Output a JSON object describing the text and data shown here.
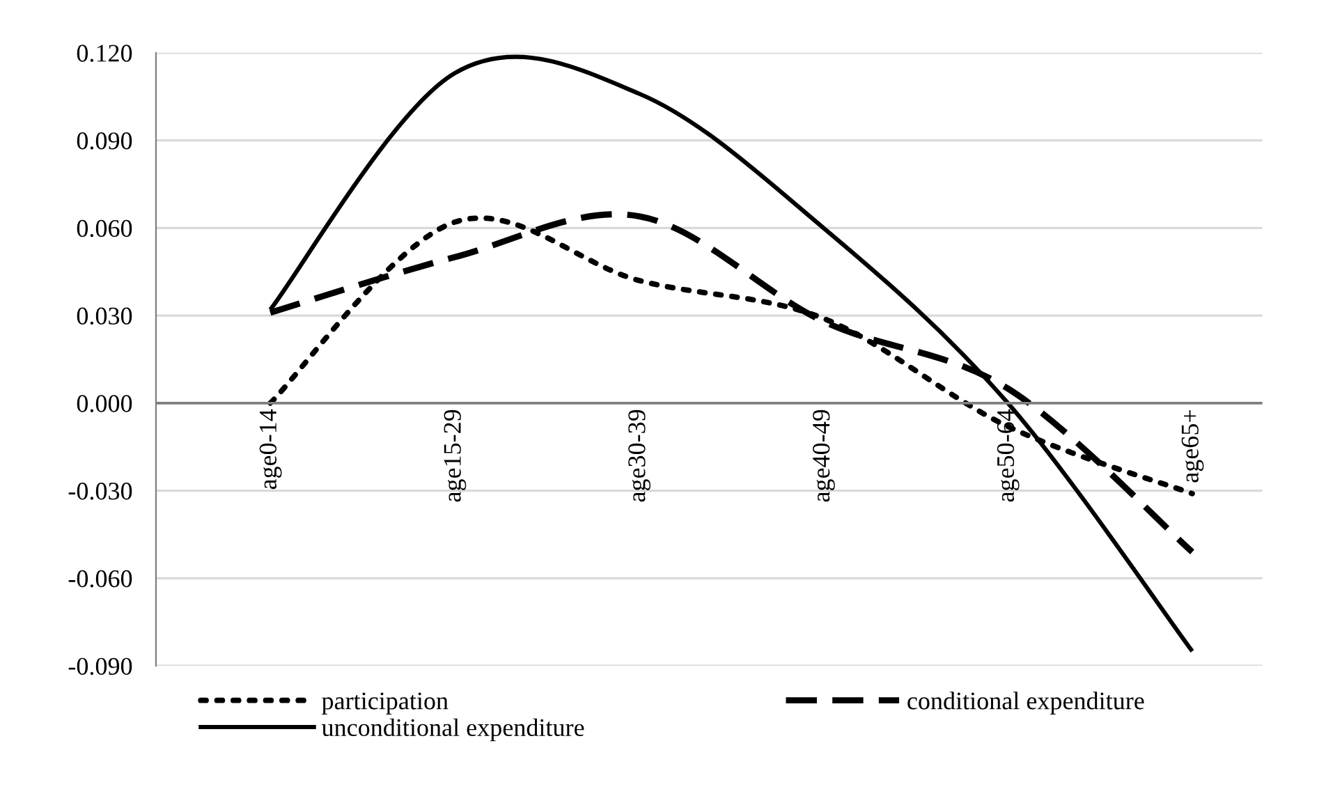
{
  "chart_data": {
    "type": "line",
    "categories": [
      "age0-14",
      "age15-29",
      "age30-39",
      "age40-49",
      "age50-64",
      "age65+"
    ],
    "series": [
      {
        "name": "participation",
        "color": "#000000",
        "line_style": "dotted",
        "values": [
          0.0,
          0.062,
          0.042,
          0.029,
          -0.008,
          -0.031
        ]
      },
      {
        "name": "conditional expenditure",
        "color": "#000000",
        "line_style": "dashed",
        "values": [
          0.031,
          0.05,
          0.064,
          0.028,
          0.005,
          -0.051
        ]
      },
      {
        "name": "unconditional expenditure",
        "color": "#000000",
        "line_style": "solid",
        "values": [
          0.032,
          0.113,
          0.106,
          0.06,
          0.0,
          -0.085
        ]
      }
    ],
    "ylim": [
      -0.09,
      0.12
    ],
    "yticks": [
      {
        "value": -0.09,
        "label": "-0.090"
      },
      {
        "value": -0.06,
        "label": "-0.060"
      },
      {
        "value": -0.03,
        "label": "-0.030"
      },
      {
        "value": 0.0,
        "label": "0.000"
      },
      {
        "value": 0.03,
        "label": "0.030"
      },
      {
        "value": 0.06,
        "label": "0.060"
      },
      {
        "value": 0.09,
        "label": "0.090"
      },
      {
        "value": 0.12,
        "label": "0.120"
      }
    ],
    "grid": "y",
    "legend": "bottom"
  }
}
